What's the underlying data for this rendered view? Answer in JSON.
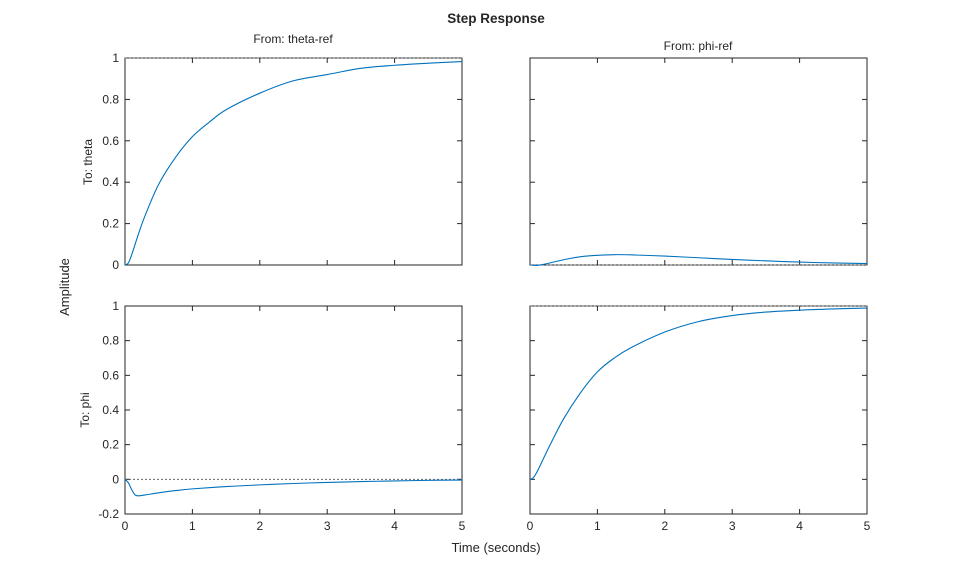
{
  "chart_data": {
    "type": "line",
    "title": "Step Response",
    "xlabel": "Time (seconds)",
    "ylabel": "Amplitude",
    "column_labels": [
      "From: theta-ref",
      "From: phi-ref"
    ],
    "row_labels": [
      "To: theta",
      "To: phi"
    ],
    "grid": false,
    "line_color": "#0072BD",
    "ref_line_color": "#666666",
    "panels": [
      {
        "row": 0,
        "col": 0,
        "xlim": [
          0,
          5
        ],
        "ylim": [
          0,
          1
        ],
        "xticks": [
          0,
          1,
          2,
          3,
          4,
          5
        ],
        "yticks": [
          0,
          0.2,
          0.4,
          0.6,
          0.8,
          1
        ],
        "ytick_labels": [
          "0",
          "0.2",
          "0.4",
          "0.6",
          "0.8",
          "1"
        ],
        "steady_state": 1,
        "series": {
          "x": [
            0,
            0.05,
            0.1,
            0.2,
            0.3,
            0.5,
            0.75,
            1,
            1.25,
            1.5,
            2,
            2.5,
            3,
            3.5,
            4,
            4.5,
            5
          ],
          "y": [
            0,
            0.01,
            0.05,
            0.15,
            0.24,
            0.39,
            0.52,
            0.62,
            0.69,
            0.75,
            0.83,
            0.89,
            0.92,
            0.95,
            0.965,
            0.975,
            0.983
          ]
        }
      },
      {
        "row": 0,
        "col": 1,
        "xlim": [
          0,
          5
        ],
        "ylim": [
          0,
          1
        ],
        "xticks": [
          0,
          1,
          2,
          3,
          4,
          5
        ],
        "yticks": [
          0,
          0.2,
          0.4,
          0.6,
          0.8,
          1
        ],
        "steady_state": 0,
        "series": {
          "x": [
            0,
            0.1,
            0.2,
            0.4,
            0.6,
            0.8,
            1,
            1.25,
            1.5,
            2,
            2.5,
            3,
            3.5,
            4,
            4.5,
            5
          ],
          "y": [
            0,
            -0.002,
            0.003,
            0.018,
            0.032,
            0.042,
            0.047,
            0.05,
            0.049,
            0.043,
            0.035,
            0.027,
            0.02,
            0.014,
            0.01,
            0.007
          ]
        }
      },
      {
        "row": 1,
        "col": 0,
        "xlim": [
          0,
          5
        ],
        "ylim": [
          -0.2,
          1
        ],
        "xticks": [
          0,
          1,
          2,
          3,
          4,
          5
        ],
        "xtick_labels": [
          "0",
          "1",
          "2",
          "3",
          "4",
          "5"
        ],
        "yticks": [
          -0.2,
          0,
          0.2,
          0.4,
          0.6,
          0.8,
          1
        ],
        "ytick_labels": [
          "-0.2",
          "0",
          "0.2",
          "0.4",
          "0.6",
          "0.8",
          "1"
        ],
        "steady_state": 0,
        "series": {
          "x": [
            0,
            0.05,
            0.1,
            0.15,
            0.2,
            0.3,
            0.5,
            0.75,
            1,
            1.5,
            2,
            2.5,
            3,
            3.5,
            4,
            4.5,
            5
          ],
          "y": [
            0,
            -0.02,
            -0.06,
            -0.09,
            -0.095,
            -0.09,
            -0.078,
            -0.065,
            -0.055,
            -0.042,
            -0.032,
            -0.024,
            -0.018,
            -0.013,
            -0.009,
            -0.006,
            -0.004
          ]
        }
      },
      {
        "row": 1,
        "col": 1,
        "xlim": [
          0,
          5
        ],
        "ylim": [
          -0.2,
          1
        ],
        "xticks": [
          0,
          1,
          2,
          3,
          4,
          5
        ],
        "xtick_labels": [
          "0",
          "1",
          "2",
          "3",
          "4",
          "5"
        ],
        "yticks": [
          -0.2,
          0,
          0.2,
          0.4,
          0.6,
          0.8,
          1
        ],
        "steady_state": 1,
        "series": {
          "x": [
            0,
            0.05,
            0.1,
            0.2,
            0.3,
            0.5,
            0.75,
            1,
            1.25,
            1.5,
            2,
            2.5,
            3,
            3.5,
            4,
            4.5,
            5
          ],
          "y": [
            0,
            0.01,
            0.04,
            0.12,
            0.2,
            0.35,
            0.5,
            0.62,
            0.7,
            0.76,
            0.85,
            0.91,
            0.945,
            0.965,
            0.976,
            0.983,
            0.988
          ]
        }
      }
    ]
  }
}
